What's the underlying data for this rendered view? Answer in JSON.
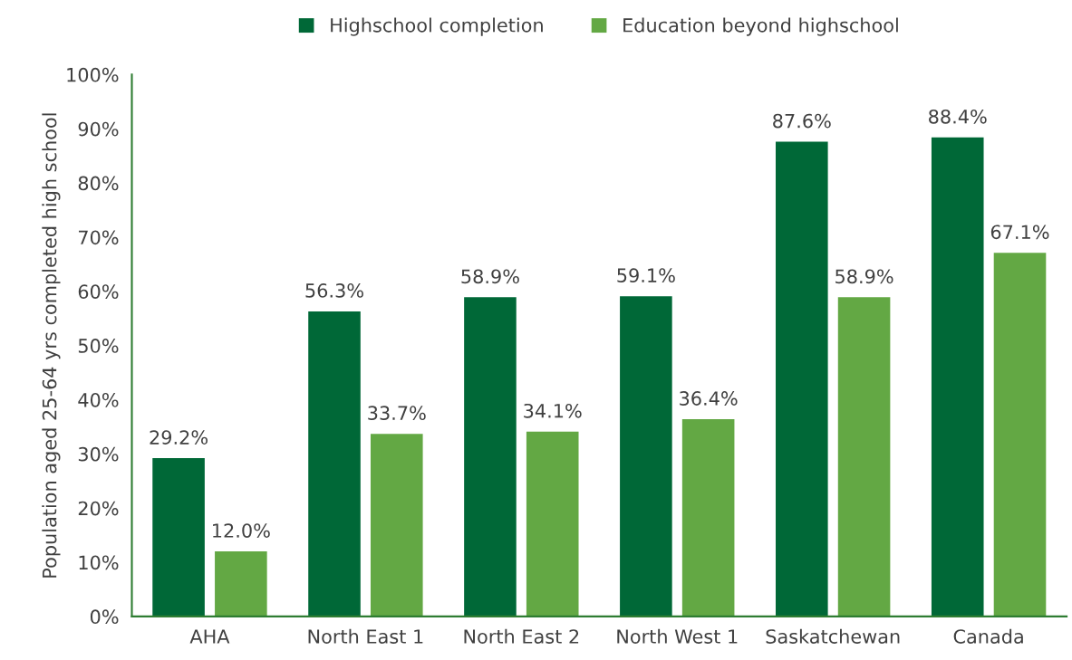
{
  "chart_data": {
    "type": "bar",
    "ylabel": "Population aged 25-64 yrs completed high school",
    "categories": [
      "AHA",
      "North East 1",
      "North East 2",
      "North West 1",
      "Saskatchewan",
      "Canada"
    ],
    "series": [
      {
        "name": "Highschool completion",
        "color": "#006837",
        "values": [
          29.2,
          56.3,
          58.9,
          59.1,
          87.6,
          88.4
        ],
        "value_labels": [
          "29.2%",
          "56.3%",
          "58.9%",
          "59.1%",
          "87.6%",
          "88.4%"
        ]
      },
      {
        "name": "Education beyond highschool",
        "color": "#63a844",
        "values": [
          12.0,
          33.7,
          34.1,
          36.4,
          58.9,
          67.1
        ],
        "value_labels": [
          "12.0%",
          "33.7%",
          "34.1%",
          "36.4%",
          "58.9%",
          "67.1%"
        ]
      }
    ],
    "ylim": [
      0,
      100
    ],
    "yticks": [
      {
        "value": 0,
        "label": "0%"
      },
      {
        "value": 10,
        "label": "10%"
      },
      {
        "value": 20,
        "label": "20%"
      },
      {
        "value": 30,
        "label": "30%"
      },
      {
        "value": 40,
        "label": "40%"
      },
      {
        "value": 50,
        "label": "50%"
      },
      {
        "value": 60,
        "label": "60%"
      },
      {
        "value": 70,
        "label": "70%"
      },
      {
        "value": 80,
        "label": "80%"
      },
      {
        "value": 90,
        "label": "90%"
      },
      {
        "value": 100,
        "label": "100%"
      }
    ],
    "grid": false,
    "legend": "top"
  }
}
